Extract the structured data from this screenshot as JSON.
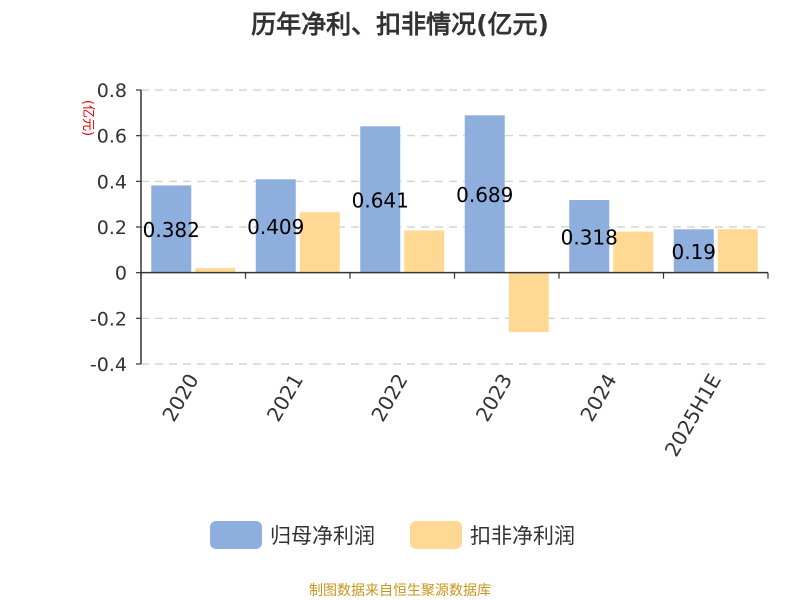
{
  "chart_data": {
    "type": "bar",
    "title": "历年净利、扣非情况(亿元)",
    "unit_label": "(亿元)",
    "categories": [
      "2020",
      "2021",
      "2022",
      "2023",
      "2024",
      "2025H1E"
    ],
    "series": [
      {
        "name": "归母净利润",
        "color": "#8eaedd",
        "values": [
          0.382,
          0.409,
          0.641,
          0.689,
          0.318,
          0.19
        ],
        "labels": [
          "0.382",
          "0.409",
          "0.641",
          "0.689",
          "0.318",
          "0.19"
        ]
      },
      {
        "name": "扣非净利润",
        "color": "#ffd993",
        "values": [
          0.02,
          0.265,
          0.185,
          -0.26,
          0.18,
          0.19
        ]
      }
    ],
    "ylim": [
      -0.4,
      0.8
    ],
    "yticks": [
      -0.4,
      -0.2,
      0,
      0.2,
      0.4,
      0.6,
      0.8
    ],
    "ytick_labels": [
      "-0.4",
      "-0.2",
      "0",
      "0.2",
      "0.4",
      "0.6",
      "0.8"
    ],
    "grid": true,
    "legend_position": "bottom"
  },
  "source_text": "制图数据来自恒生聚源数据库"
}
